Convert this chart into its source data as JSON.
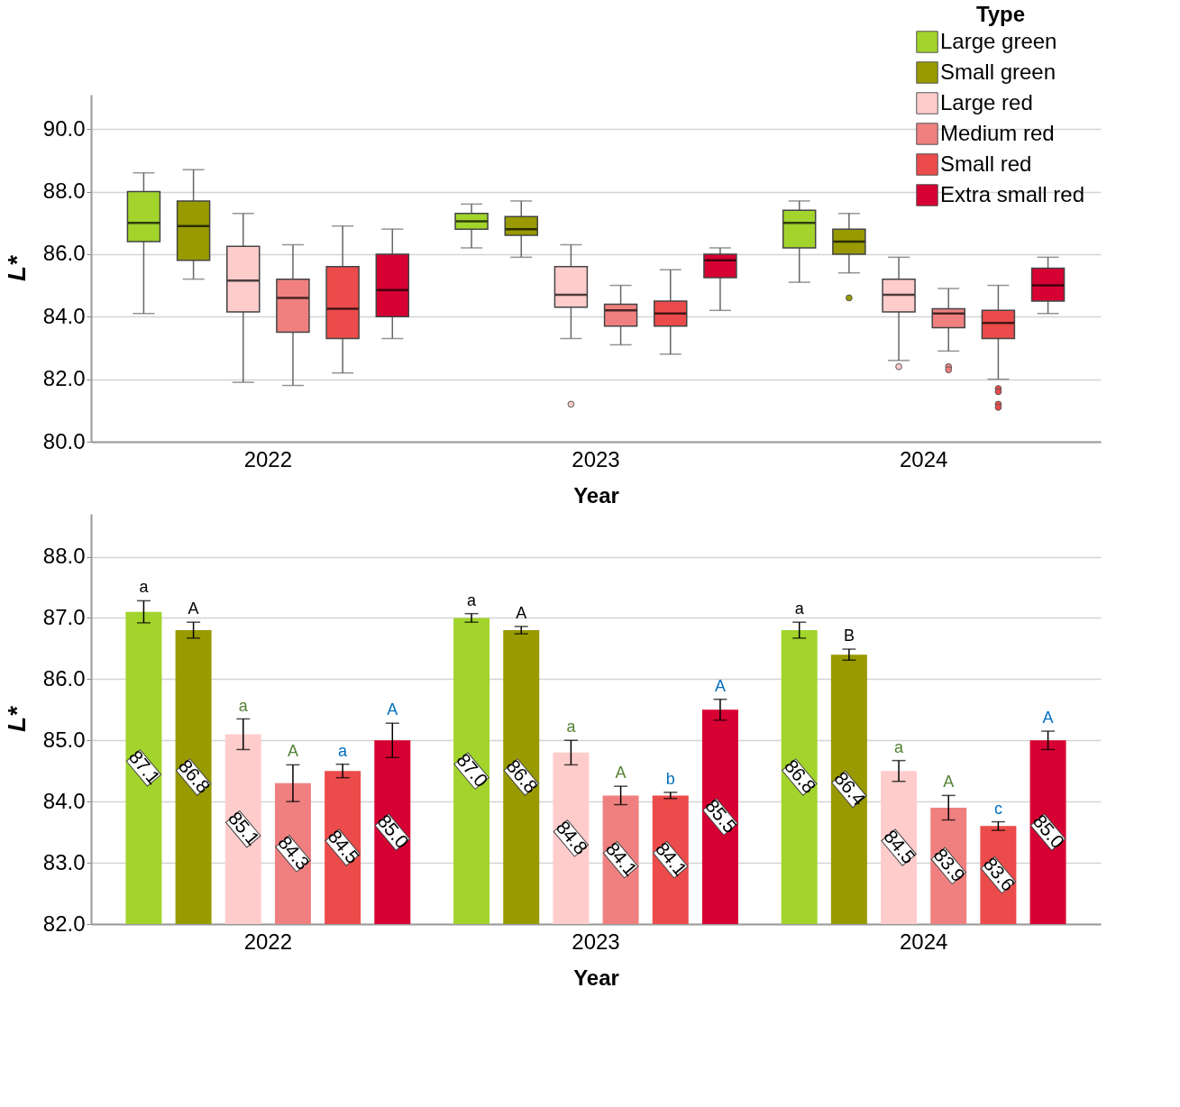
{
  "chart_data": [
    {
      "type": "box",
      "xlabel": "Year",
      "ylabel": "L*",
      "legend_title": "Type",
      "legend": "top right",
      "grid": "y",
      "categories": [
        "2022",
        "2023",
        "2024"
      ],
      "ylim": [
        80,
        91.1
      ],
      "yticks": [
        {
          "value": 80,
          "label": "80.0"
        },
        {
          "value": 82,
          "label": "82.0"
        },
        {
          "value": 84,
          "label": "84.0"
        },
        {
          "value": 86,
          "label": "86.0"
        },
        {
          "value": 88,
          "label": "88.0"
        },
        {
          "value": 90,
          "label": "90.0"
        }
      ],
      "series": [
        {
          "name": "Large green",
          "color": "#a2d42c",
          "boxes": [
            {
              "low": 84.1,
              "q1": 86.4,
              "median": 87.0,
              "q3": 88.0,
              "high": 88.6
            },
            {
              "low": 86.2,
              "q1": 86.8,
              "median": 87.05,
              "q3": 87.3,
              "high": 87.6
            },
            {
              "low": 85.1,
              "q1": 86.2,
              "median": 87.0,
              "q3": 87.4,
              "high": 87.7
            }
          ]
        },
        {
          "name": "Small green",
          "color": "#989a00",
          "boxes": [
            {
              "low": 85.2,
              "q1": 85.8,
              "median": 86.9,
              "q3": 87.7,
              "high": 88.7
            },
            {
              "low": 85.9,
              "q1": 86.6,
              "median": 86.8,
              "q3": 87.2,
              "high": 87.7
            },
            {
              "low": 85.4,
              "q1": 86.0,
              "median": 86.4,
              "q3": 86.8,
              "high": 87.3,
              "outliers": [
                84.6
              ]
            }
          ]
        },
        {
          "name": "Large red",
          "color": "#ffcccc",
          "boxes": [
            {
              "low": 81.9,
              "q1": 84.15,
              "median": 85.15,
              "q3": 86.25,
              "high": 87.3
            },
            {
              "low": 83.3,
              "q1": 84.3,
              "median": 84.7,
              "q3": 85.6,
              "high": 86.3,
              "outliers": [
                81.2
              ]
            },
            {
              "low": 82.6,
              "q1": 84.15,
              "median": 84.7,
              "q3": 85.2,
              "high": 85.9,
              "outliers": [
                82.4
              ]
            }
          ]
        },
        {
          "name": "Medium red",
          "color": "#f08080",
          "boxes": [
            {
              "low": 81.8,
              "q1": 83.5,
              "median": 84.6,
              "q3": 85.2,
              "high": 86.3
            },
            {
              "low": 83.1,
              "q1": 83.7,
              "median": 84.2,
              "q3": 84.4,
              "high": 85.0
            },
            {
              "low": 82.9,
              "q1": 83.65,
              "median": 84.1,
              "q3": 84.25,
              "high": 84.9,
              "outliers": [
                82.4,
                82.3
              ]
            }
          ]
        },
        {
          "name": "Small red",
          "color": "#ec4b4b",
          "boxes": [
            {
              "low": 82.2,
              "q1": 83.3,
              "median": 84.25,
              "q3": 85.6,
              "high": 86.9
            },
            {
              "low": 82.8,
              "q1": 83.7,
              "median": 84.1,
              "q3": 84.5,
              "high": 85.5
            },
            {
              "low": 82.0,
              "q1": 83.3,
              "median": 83.8,
              "q3": 84.2,
              "high": 85.0,
              "outliers": [
                81.7,
                81.6,
                81.2,
                81.1
              ]
            }
          ]
        },
        {
          "name": "Extra small red",
          "color": "#d70033",
          "boxes": [
            {
              "low": 83.3,
              "q1": 84.0,
              "median": 84.85,
              "q3": 86.0,
              "high": 86.8
            },
            {
              "low": 84.2,
              "q1": 85.25,
              "median": 85.8,
              "q3": 86.0,
              "high": 86.2
            },
            {
              "low": 84.1,
              "q1": 84.5,
              "median": 85.0,
              "q3": 85.55,
              "high": 85.9
            }
          ]
        }
      ]
    },
    {
      "type": "bar",
      "xlabel": "Year",
      "ylabel": "L*",
      "grid": "y",
      "categories": [
        "2022",
        "2023",
        "2024"
      ],
      "ylim": [
        82,
        88.7
      ],
      "yticks": [
        {
          "value": 82,
          "label": "82.0"
        },
        {
          "value": 83,
          "label": "83.0"
        },
        {
          "value": 84,
          "label": "84.0"
        },
        {
          "value": 85,
          "label": "85.0"
        },
        {
          "value": 86,
          "label": "86.0"
        },
        {
          "value": 87,
          "label": "87.0"
        },
        {
          "value": 88,
          "label": "88.0"
        }
      ],
      "series": [
        {
          "color": "#a2d42c",
          "values": [
            87.1,
            87.0,
            86.8
          ],
          "errors": [
            0.18,
            0.07,
            0.13
          ],
          "value_labels": [
            "87.1",
            "87.0",
            "86.8"
          ]
        },
        {
          "color": "#989a00",
          "values": [
            86.8,
            86.8,
            86.4
          ],
          "errors": [
            0.13,
            0.06,
            0.09
          ],
          "value_labels": [
            "86.8",
            "86.8",
            "86.4"
          ]
        },
        {
          "color": "#ffcccc",
          "values": [
            85.1,
            84.8,
            84.5
          ],
          "errors": [
            0.25,
            0.2,
            0.17
          ],
          "value_labels": [
            "85.1",
            "84.8",
            "84.5"
          ]
        },
        {
          "color": "#f08080",
          "values": [
            84.3,
            84.1,
            83.9
          ],
          "errors": [
            0.3,
            0.15,
            0.2
          ],
          "value_labels": [
            "84.3",
            "84.1",
            "83.9"
          ]
        },
        {
          "color": "#ec4b4b",
          "values": [
            84.5,
            84.1,
            83.6
          ],
          "errors": [
            0.11,
            0.05,
            0.07
          ],
          "value_labels": [
            "84.5",
            "84.1",
            "83.6"
          ]
        },
        {
          "color": "#d70033",
          "values": [
            85.0,
            85.5,
            85.0
          ],
          "errors": [
            0.28,
            0.17,
            0.15
          ],
          "value_labels": [
            "85.0",
            "85.5",
            "85.0"
          ]
        }
      ],
      "annotations": [
        "a",
        "A",
        "a",
        "A",
        "a",
        "A",
        "a",
        "A",
        "a",
        "A",
        "b",
        "A",
        "a",
        "B",
        "a",
        "A",
        "c",
        "A"
      ]
    }
  ]
}
